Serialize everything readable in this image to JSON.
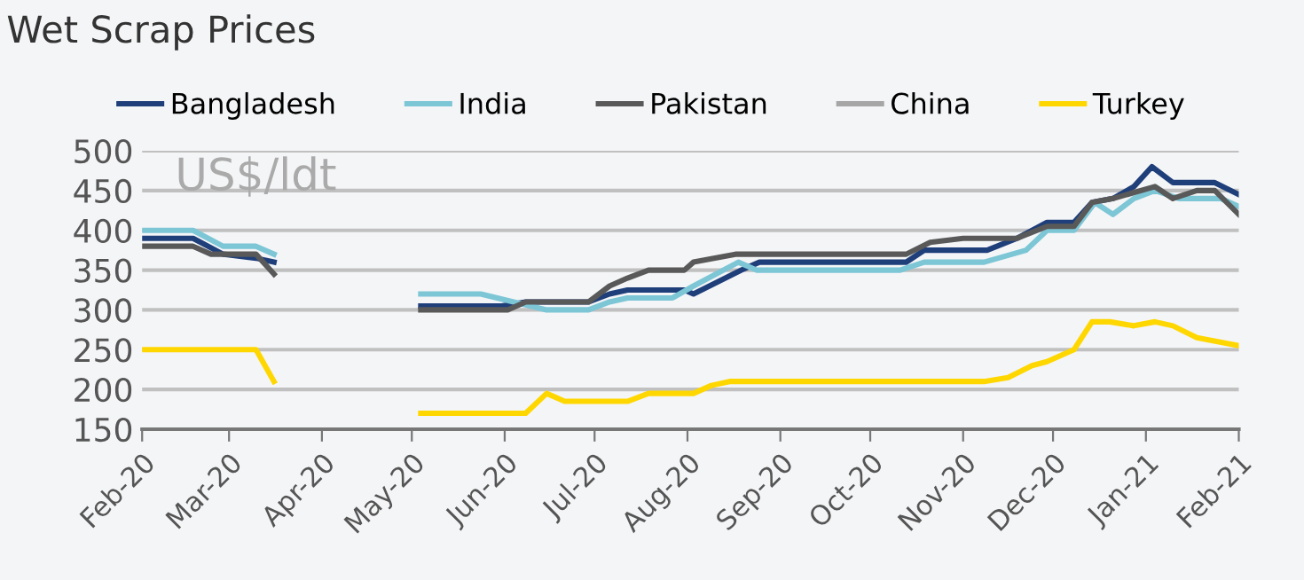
{
  "chart_data": {
    "type": "line",
    "title": "Wet Scrap Prices",
    "annotations": [
      "US$/ldt"
    ],
    "series": [
      {
        "name": "Bangladesh",
        "color": "#1f3f7a",
        "x": [
          "2020-02-01",
          "2020-02-18",
          "2020-02-28",
          "2020-03-10",
          "2020-03-16",
          "2020-04-10",
          "2020-05-04",
          "2020-05-31",
          "2020-06-08",
          "2020-06-29",
          "2020-07-06",
          "2020-07-12",
          "2020-07-31",
          "2020-08-03",
          "2020-08-19",
          "2020-08-25",
          "2020-10-13",
          "2020-10-19",
          "2020-11-09",
          "2020-11-19",
          "2020-11-29",
          "2020-12-08",
          "2020-12-14",
          "2020-12-21",
          "2020-12-28",
          "2021-01-03",
          "2021-01-10",
          "2021-01-24",
          "2021-02-01"
        ],
        "values": [
          390,
          390,
          370,
          365,
          360,
          null,
          305,
          305,
          310,
          310,
          320,
          325,
          325,
          320,
          350,
          360,
          360,
          375,
          375,
          390,
          410,
          410,
          435,
          440,
          455,
          480,
          460,
          460,
          445
        ]
      },
      {
        "name": "India",
        "color": "#7cc6d6",
        "x": [
          "2020-02-01",
          "2020-02-18",
          "2020-02-28",
          "2020-03-10",
          "2020-03-16",
          "2020-04-10",
          "2020-05-04",
          "2020-05-24",
          "2020-06-15",
          "2020-06-29",
          "2020-07-06",
          "2020-07-12",
          "2020-07-27",
          "2020-08-03",
          "2020-08-18",
          "2020-08-24",
          "2020-10-11",
          "2020-10-19",
          "2020-11-08",
          "2020-11-22",
          "2020-11-29",
          "2020-12-08",
          "2020-12-15",
          "2020-12-21",
          "2020-12-28",
          "2021-01-04",
          "2021-01-12",
          "2021-01-26",
          "2021-02-01"
        ],
        "values": [
          400,
          400,
          380,
          380,
          370,
          null,
          320,
          320,
          300,
          300,
          310,
          315,
          315,
          330,
          360,
          350,
          350,
          360,
          360,
          375,
          400,
          400,
          435,
          420,
          440,
          450,
          440,
          440,
          430
        ]
      },
      {
        "name": "Pakistan",
        "color": "#595959",
        "x": [
          "2020-02-01",
          "2020-02-18",
          "2020-02-24",
          "2020-03-10",
          "2020-03-16",
          "2020-04-10",
          "2020-05-04",
          "2020-06-02",
          "2020-06-08",
          "2020-06-29",
          "2020-07-06",
          "2020-07-12",
          "2020-07-19",
          "2020-07-31",
          "2020-08-03",
          "2020-08-17",
          "2020-10-13",
          "2020-10-21",
          "2020-11-01",
          "2020-11-19",
          "2020-11-29",
          "2020-12-08",
          "2020-12-14",
          "2020-12-21",
          "2021-01-04",
          "2021-01-10",
          "2021-01-18",
          "2021-01-24",
          "2021-02-01"
        ],
        "values": [
          380,
          380,
          370,
          370,
          345,
          null,
          300,
          300,
          310,
          310,
          330,
          340,
          350,
          350,
          360,
          370,
          370,
          385,
          390,
          390,
          405,
          405,
          435,
          440,
          455,
          440,
          450,
          450,
          420
        ]
      },
      {
        "name": "China",
        "color": "#a6a6a6"
      },
      {
        "name": "Turkey",
        "color": "#ffd700",
        "x": [
          "2020-02-01",
          "2020-03-10",
          "2020-03-16",
          "2020-04-10",
          "2020-05-04",
          "2020-06-08",
          "2020-06-15",
          "2020-06-21",
          "2020-07-12",
          "2020-07-19",
          "2020-08-03",
          "2020-08-09",
          "2020-08-15",
          "2020-11-08",
          "2020-11-16",
          "2020-11-24",
          "2020-11-29",
          "2020-12-08",
          "2020-12-14",
          "2020-12-20",
          "2020-12-28",
          "2021-01-04",
          "2021-01-10",
          "2021-01-18",
          "2021-02-01"
        ],
        "values": [
          250,
          250,
          210,
          null,
          170,
          170,
          195,
          185,
          185,
          195,
          195,
          205,
          210,
          210,
          215,
          230,
          235,
          250,
          285,
          285,
          280,
          285,
          280,
          265,
          255
        ]
      }
    ],
    "xlim": [
      "2020-02-01",
      "2021-02-01"
    ],
    "xticks": [
      {
        "value": "2020-02-01",
        "label": "Feb-20"
      },
      {
        "value": "2020-03-01",
        "label": "Mar-20"
      },
      {
        "value": "2020-04-01",
        "label": "Apr-20"
      },
      {
        "value": "2020-05-01",
        "label": "May-20"
      },
      {
        "value": "2020-06-01",
        "label": "Jun-20"
      },
      {
        "value": "2020-07-01",
        "label": "Jul-20"
      },
      {
        "value": "2020-08-01",
        "label": "Aug-20"
      },
      {
        "value": "2020-09-01",
        "label": "Sep-20"
      },
      {
        "value": "2020-10-01",
        "label": "Oct-20"
      },
      {
        "value": "2020-11-01",
        "label": "Nov-20"
      },
      {
        "value": "2020-12-01",
        "label": "Dec-20"
      },
      {
        "value": "2021-01-01",
        "label": "Jan-21"
      },
      {
        "value": "2021-02-01",
        "label": "Feb-21"
      }
    ],
    "ylim": [
      150,
      500
    ],
    "yticks": [
      150,
      200,
      250,
      300,
      350,
      400,
      450,
      500
    ],
    "grid": "y",
    "legend": "top",
    "marker": "none",
    "line_style": "solid"
  }
}
